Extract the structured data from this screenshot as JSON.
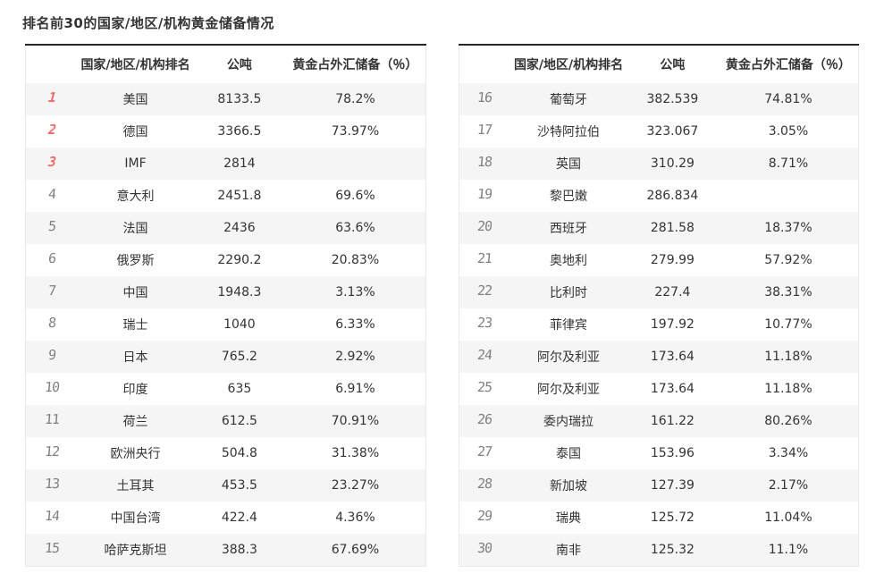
{
  "title": "排名前30的国家/地区/机构黄金储备情况",
  "columns": {
    "rank": "",
    "country": "国家/地区/机构排名",
    "tons": "公吨",
    "pct": "黄金占外汇储备（％）"
  },
  "colors": {
    "top3_rank": "#ef6b6b",
    "rank_gray": "#7f7f7f",
    "stripe": "#f5f5f5",
    "border_dark": "#262626",
    "border_light": "#eaeaea",
    "text": "#333333"
  },
  "tables": [
    {
      "name": "ranks-1-15",
      "rows": [
        {
          "rank": "1",
          "name": "美国",
          "tons": "8133.5",
          "pct": "78.2%"
        },
        {
          "rank": "2",
          "name": "德国",
          "tons": "3366.5",
          "pct": "73.97%"
        },
        {
          "rank": "3",
          "name": "IMF",
          "tons": "2814",
          "pct": ""
        },
        {
          "rank": "4",
          "name": "意大利",
          "tons": "2451.8",
          "pct": "69.6%"
        },
        {
          "rank": "5",
          "name": "法国",
          "tons": "2436",
          "pct": "63.6%"
        },
        {
          "rank": "6",
          "name": "俄罗斯",
          "tons": "2290.2",
          "pct": "20.83%"
        },
        {
          "rank": "7",
          "name": "中国",
          "tons": "1948.3",
          "pct": "3.13%"
        },
        {
          "rank": "8",
          "name": "瑞士",
          "tons": "1040",
          "pct": "6.33%"
        },
        {
          "rank": "9",
          "name": "日本",
          "tons": "765.2",
          "pct": "2.92%"
        },
        {
          "rank": "10",
          "name": "印度",
          "tons": "635",
          "pct": "6.91%"
        },
        {
          "rank": "11",
          "name": "荷兰",
          "tons": "612.5",
          "pct": "70.91%"
        },
        {
          "rank": "12",
          "name": "欧洲央行",
          "tons": "504.8",
          "pct": "31.38%"
        },
        {
          "rank": "13",
          "name": "土耳其",
          "tons": "453.5",
          "pct": "23.27%"
        },
        {
          "rank": "14",
          "name": "中国台湾",
          "tons": "422.4",
          "pct": "4.36%"
        },
        {
          "rank": "15",
          "name": "哈萨克斯坦",
          "tons": "388.3",
          "pct": "67.69%"
        }
      ]
    },
    {
      "name": "ranks-16-30",
      "rows": [
        {
          "rank": "16",
          "name": "葡萄牙",
          "tons": "382.539",
          "pct": "74.81%"
        },
        {
          "rank": "17",
          "name": "沙特阿拉伯",
          "tons": "323.067",
          "pct": "3.05%"
        },
        {
          "rank": "18",
          "name": "英国",
          "tons": "310.29",
          "pct": "8.71%"
        },
        {
          "rank": "19",
          "name": "黎巴嫩",
          "tons": "286.834",
          "pct": ""
        },
        {
          "rank": "20",
          "name": "西班牙",
          "tons": "281.58",
          "pct": "18.37%"
        },
        {
          "rank": "21",
          "name": "奥地利",
          "tons": "279.99",
          "pct": "57.92%"
        },
        {
          "rank": "22",
          "name": "比利时",
          "tons": "227.4",
          "pct": "38.31%"
        },
        {
          "rank": "23",
          "name": "菲律宾",
          "tons": "197.92",
          "pct": "10.77%"
        },
        {
          "rank": "24",
          "name": "阿尔及利亚",
          "tons": "173.64",
          "pct": "11.18%"
        },
        {
          "rank": "25",
          "name": "阿尔及利亚",
          "tons": "173.64",
          "pct": "11.18%"
        },
        {
          "rank": "26",
          "name": "委内瑞拉",
          "tons": "161.22",
          "pct": "80.26%"
        },
        {
          "rank": "27",
          "name": "泰国",
          "tons": "153.96",
          "pct": "3.34%"
        },
        {
          "rank": "28",
          "name": "新加坡",
          "tons": "127.39",
          "pct": "2.17%"
        },
        {
          "rank": "29",
          "name": "瑞典",
          "tons": "125.72",
          "pct": "11.04%"
        },
        {
          "rank": "30",
          "name": "南非",
          "tons": "125.32",
          "pct": "11.1%"
        }
      ]
    }
  ]
}
